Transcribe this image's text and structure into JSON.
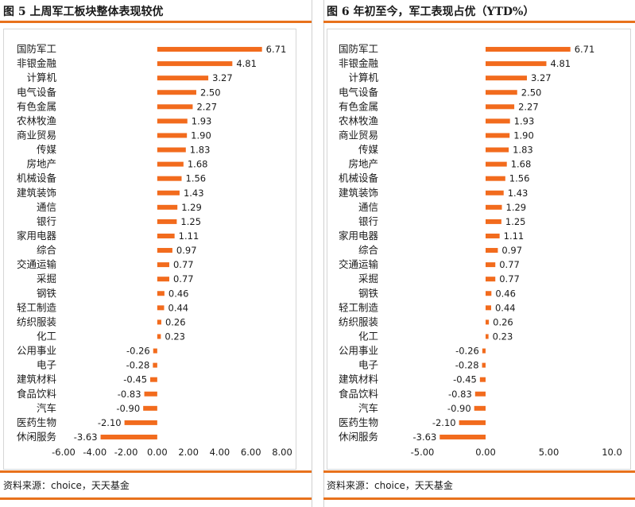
{
  "panels": [
    {
      "title": "图 5   上周军工板块整体表现较优",
      "source": "资料来源：choice，天天基金",
      "chart_data": {
        "type": "bar",
        "orientation": "horizontal",
        "title": "上周军工板块整体表现较优",
        "categories": [
          "国防军工",
          "非银金融",
          "计算机",
          "电气设备",
          "有色金属",
          "农林牧渔",
          "商业贸易",
          "传媒",
          "房地产",
          "机械设备",
          "建筑装饰",
          "通信",
          "银行",
          "家用电器",
          "综合",
          "交通运输",
          "采掘",
          "钢铁",
          "轻工制造",
          "纺织服装",
          "化工",
          "公用事业",
          "电子",
          "建筑材料",
          "食品饮料",
          "汽车",
          "医药生物",
          "休闲服务"
        ],
        "values": [
          6.71,
          4.81,
          3.27,
          2.5,
          2.27,
          1.93,
          1.9,
          1.83,
          1.68,
          1.56,
          1.43,
          1.29,
          1.25,
          1.11,
          0.97,
          0.77,
          0.77,
          0.46,
          0.44,
          0.26,
          0.23,
          -0.26,
          -0.28,
          -0.45,
          -0.83,
          -0.9,
          -2.1,
          -3.63
        ],
        "value_labels": [
          "6.71",
          "4.81",
          "3.27",
          "2.50",
          "2.27",
          "1.93",
          "1.90",
          "1.83",
          "1.68",
          "1.56",
          "1.43",
          "1.29",
          "1.25",
          "1.11",
          "0.97",
          "0.77",
          "0.77",
          "0.46",
          "0.44",
          "0.26",
          "0.23",
          "-0.26",
          "-0.28",
          "-0.45",
          "-0.83",
          "-0.90",
          "-2.10",
          "-3.63"
        ],
        "xlim": [
          -6,
          8
        ],
        "xticks": [
          -6,
          -4,
          -2,
          0,
          2,
          4,
          6,
          8
        ],
        "xtick_labels": [
          "-6.00",
          "-4.00",
          "-2.00",
          "0.00",
          "2.00",
          "4.00",
          "6.00",
          "8.00"
        ],
        "grid": false,
        "legend": "none",
        "bar_color": "#f26b1d"
      }
    },
    {
      "title": "图 6   年初至今，军工表现占优（YTD%）",
      "source": "资料来源：choice，天天基金",
      "chart_data": {
        "type": "bar",
        "orientation": "horizontal",
        "title": "年初至今，军工表现占优（YTD%）",
        "categories": [
          "国防军工",
          "非银金融",
          "计算机",
          "电气设备",
          "有色金属",
          "农林牧渔",
          "商业贸易",
          "传媒",
          "房地产",
          "机械设备",
          "建筑装饰",
          "通信",
          "银行",
          "家用电器",
          "综合",
          "交通运输",
          "采掘",
          "钢铁",
          "轻工制造",
          "纺织服装",
          "化工",
          "公用事业",
          "电子",
          "建筑材料",
          "食品饮料",
          "汽车",
          "医药生物",
          "休闲服务"
        ],
        "values": [
          6.71,
          4.81,
          3.27,
          2.5,
          2.27,
          1.93,
          1.9,
          1.83,
          1.68,
          1.56,
          1.43,
          1.29,
          1.25,
          1.11,
          0.97,
          0.77,
          0.77,
          0.46,
          0.44,
          0.26,
          0.23,
          -0.26,
          -0.28,
          -0.45,
          -0.83,
          -0.9,
          -2.1,
          -3.63
        ],
        "value_labels": [
          "6.71",
          "4.81",
          "3.27",
          "2.50",
          "2.27",
          "1.93",
          "1.90",
          "1.83",
          "1.68",
          "1.56",
          "1.43",
          "1.29",
          "1.25",
          "1.11",
          "0.97",
          "0.77",
          "0.77",
          "0.46",
          "0.44",
          "0.26",
          "0.23",
          "-0.26",
          "-0.28",
          "-0.45",
          "-0.83",
          "-0.90",
          "-2.10",
          "-3.63"
        ],
        "xlim": [
          -10,
          10
        ],
        "xticks": [
          -5,
          0,
          5,
          10
        ],
        "xtick_labels": [
          "-5.00",
          "0.00",
          "5.00",
          "10.0"
        ],
        "grid": false,
        "legend": "none",
        "bar_color": "#f26b1d"
      }
    }
  ]
}
